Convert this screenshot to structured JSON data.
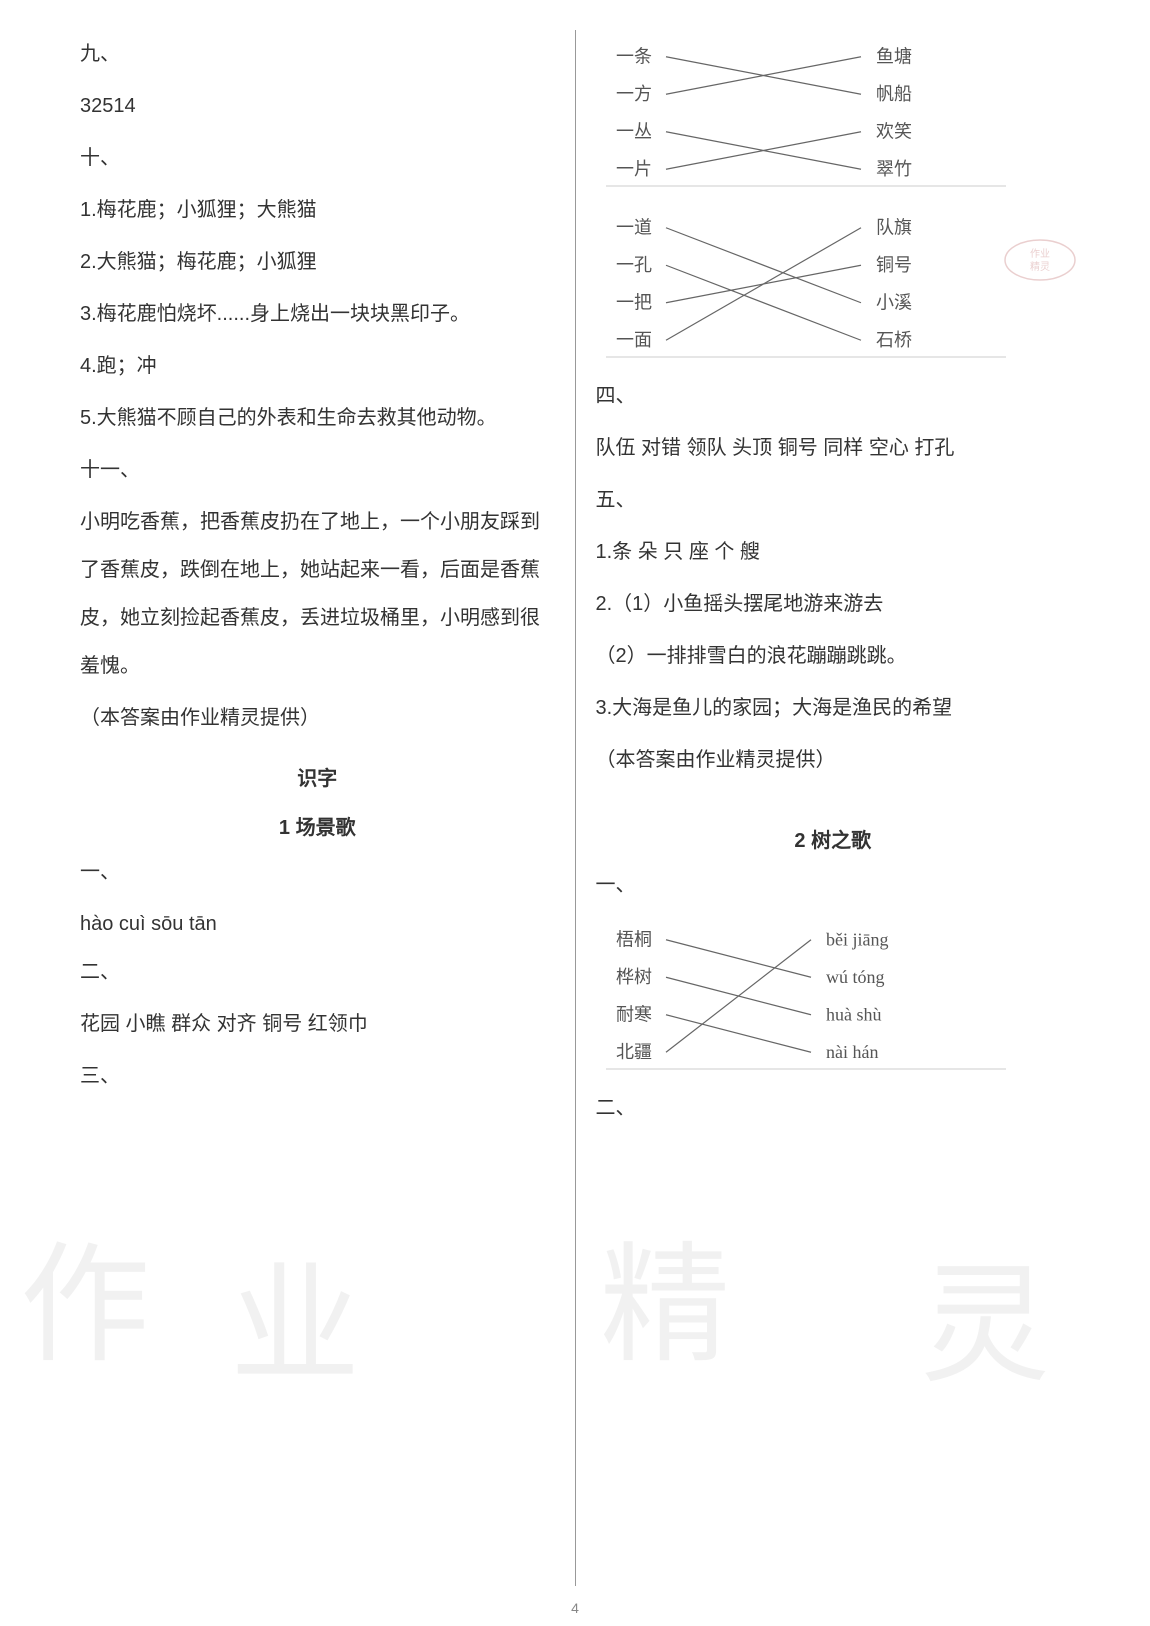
{
  "page_number": "4",
  "text_color": "#333333",
  "background_color": "#ffffff",
  "divider_color": "#999999",
  "watermark_color": "#dddddd",
  "font_size": 20,
  "line_height": 2.4,
  "watermarks": {
    "w1": "作",
    "w2": "业",
    "w3": "精",
    "w4": "灵"
  },
  "left_column": {
    "section9_header": "九、",
    "section9_content": "32514",
    "section10_header": "十、",
    "section10_items": [
      "1.梅花鹿；小狐狸；大熊猫",
      "2.大熊猫；梅花鹿；小狐狸",
      "3.梅花鹿怕烧坏......身上烧出一块块黑印子。",
      "4.跑；冲",
      "5.大熊猫不顾自己的外表和生命去救其他动物。"
    ],
    "section11_header": "十一、",
    "section11_story": "小明吃香蕉，把香蕉皮扔在了地上，一个小朋友踩到了香蕉皮，跌倒在地上，她站起来一看，后面是香蕉皮，她立刻捡起香蕉皮，丢进垃圾桶里，小明感到很羞愧。",
    "credit": "（本答案由作业精灵提供）",
    "unit_title": "识字",
    "lesson_title": "1 场景歌",
    "section1_header": "一、",
    "section1_pinyin": "hào  cuì  sōu  tān",
    "section2_header": "二、",
    "section2_content": "花园  小瞧  群众  对齐  铜号  红领巾",
    "section3_header": "三、"
  },
  "right_column": {
    "matching1": {
      "left_items": [
        "一条",
        "一方",
        "一丛",
        "一片"
      ],
      "right_items": [
        "鱼塘",
        "帆船",
        "欢笑",
        "翠竹"
      ],
      "connections": [
        [
          0,
          1
        ],
        [
          1,
          0
        ],
        [
          2,
          3
        ],
        [
          3,
          2
        ]
      ],
      "font_size": 18,
      "line_color": "#666666"
    },
    "matching2": {
      "left_items": [
        "一道",
        "一孔",
        "一把",
        "一面"
      ],
      "right_items": [
        "队旗",
        "铜号",
        "小溪",
        "石桥"
      ],
      "connections": [
        [
          0,
          2
        ],
        [
          1,
          3
        ],
        [
          2,
          1
        ],
        [
          3,
          0
        ]
      ],
      "font_size": 18,
      "line_color": "#666666"
    },
    "section4_header": "四、",
    "section4_content": "队伍  对错  领队  头顶  铜号  同样  空心  打孔",
    "section5_header": "五、",
    "section5_items": [
      "1.条  朵  只  座  个  艘",
      "2.（1）小鱼摇头摆尾地游来游去",
      "（2）一排排雪白的浪花蹦蹦跳跳。",
      "3.大海是鱼儿的家园；大海是渔民的希望"
    ],
    "credit": "（本答案由作业精灵提供）",
    "lesson_title": "2 树之歌",
    "section1_header": "一、",
    "matching3": {
      "left_items": [
        "梧桐",
        "桦树",
        "耐寒",
        "北疆"
      ],
      "right_items": [
        "běi  jiāng",
        "wú  tóng",
        "huà  shù",
        "nài  hán"
      ],
      "connections": [
        [
          0,
          1
        ],
        [
          1,
          2
        ],
        [
          2,
          3
        ],
        [
          3,
          0
        ]
      ],
      "font_size": 18,
      "line_color": "#666666"
    },
    "section2_header": "二、"
  }
}
